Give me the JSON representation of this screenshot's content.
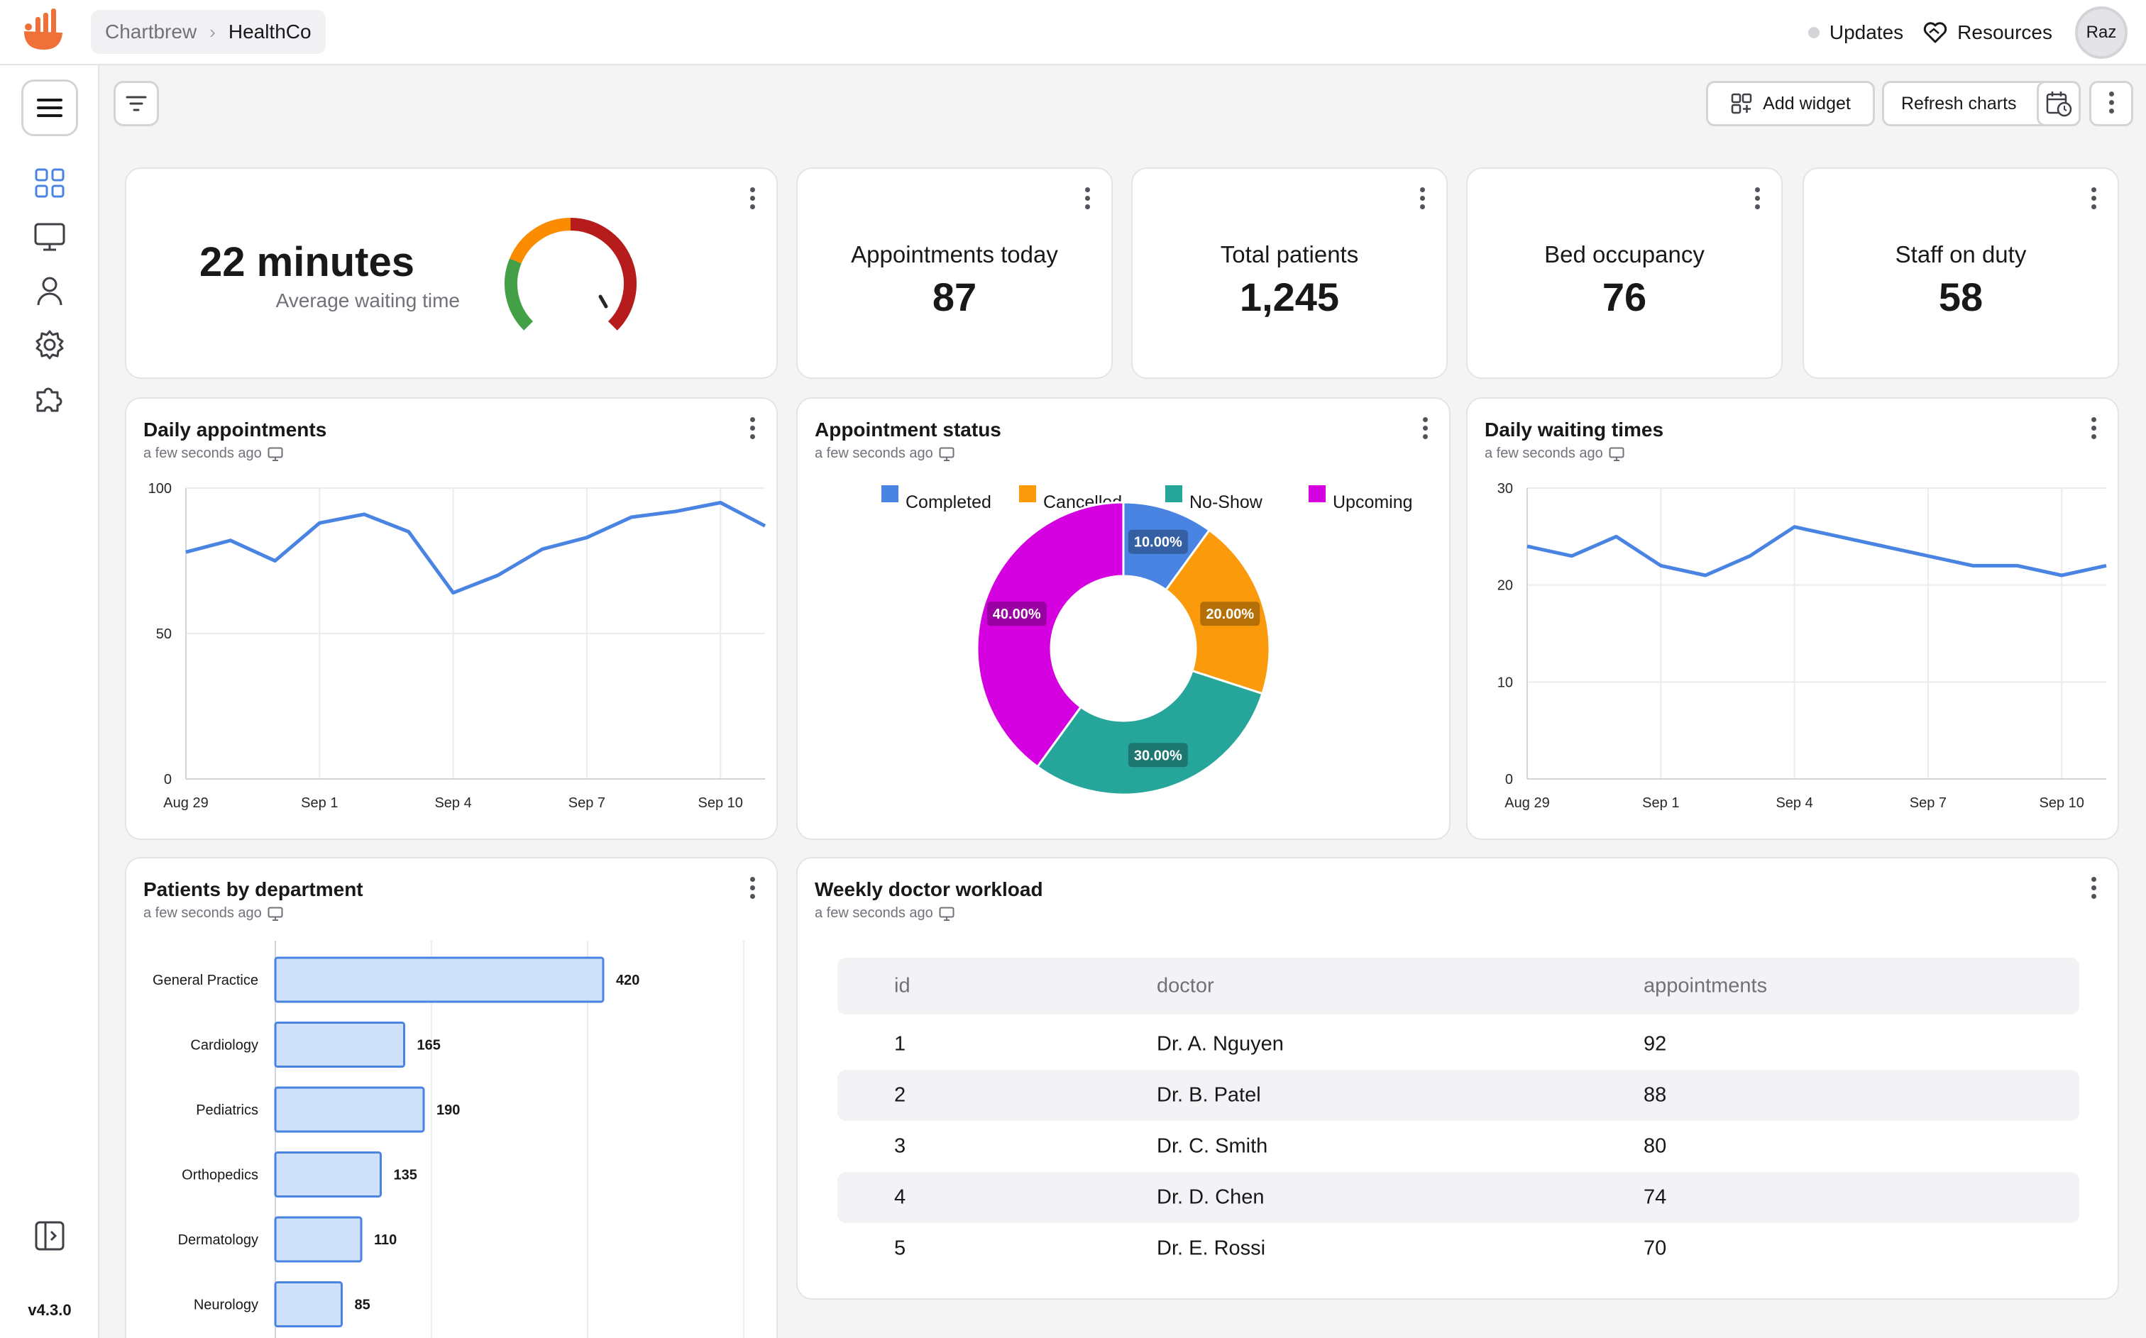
{
  "header": {
    "breadcrumb_parent": "Chartbrew",
    "breadcrumb_current": "HealthCo",
    "updates_label": "Updates",
    "resources_label": "Resources",
    "avatar_initials": "Raz"
  },
  "sidebar": {
    "version": "v4.3.0"
  },
  "toolbar": {
    "add_widget_label": "Add widget",
    "refresh_label": "Refresh charts"
  },
  "kpis": {
    "waiting": {
      "value": "22 minutes",
      "label": "Average waiting time",
      "gauge_colors": [
        "#43a047",
        "#fb8c00",
        "#b71c1c"
      ]
    },
    "appointments": {
      "label": "Appointments today",
      "value": "87"
    },
    "patients": {
      "label": "Total patients",
      "value": "1,245"
    },
    "beds": {
      "label": "Bed occupancy",
      "value": "76"
    },
    "staff": {
      "label": "Staff on duty",
      "value": "58"
    }
  },
  "widgets": {
    "daily_appointments": {
      "title": "Daily appointments",
      "subtitle": "a few seconds ago"
    },
    "appointment_status": {
      "title": "Appointment status",
      "subtitle": "a few seconds ago"
    },
    "daily_waiting": {
      "title": "Daily waiting times",
      "subtitle": "a few seconds ago"
    },
    "patients_by_dept": {
      "title": "Patients by department",
      "subtitle": "a few seconds ago"
    },
    "doctor_workload": {
      "title": "Weekly doctor workload",
      "subtitle": "a few seconds ago",
      "columns": [
        "id",
        "doctor",
        "appointments"
      ],
      "rows": [
        [
          "1",
          "Dr. A. Nguyen",
          "92"
        ],
        [
          "2",
          "Dr. B. Patel",
          "88"
        ],
        [
          "3",
          "Dr. C. Smith",
          "80"
        ],
        [
          "4",
          "Dr. D. Chen",
          "74"
        ],
        [
          "5",
          "Dr. E. Rossi",
          "70"
        ]
      ]
    }
  },
  "chart_data": [
    {
      "id": "daily_appointments",
      "type": "line",
      "color": "#4a84e2",
      "x": [
        "Aug 29",
        "Aug 30",
        "Aug 31",
        "Sep 1",
        "Sep 2",
        "Sep 3",
        "Sep 4",
        "Sep 5",
        "Sep 6",
        "Sep 7",
        "Sep 8",
        "Sep 9",
        "Sep 10",
        "Sep 11"
      ],
      "values": [
        78,
        82,
        75,
        88,
        91,
        85,
        64,
        70,
        79,
        83,
        90,
        92,
        95,
        87
      ],
      "xticks": [
        "Aug 29",
        "Sep 1",
        "Sep 4",
        "Sep 7",
        "Sep 10"
      ],
      "yticks": [
        0,
        50,
        100
      ],
      "ylim": [
        0,
        100
      ]
    },
    {
      "id": "appointment_status",
      "type": "pie",
      "labels": [
        "Completed",
        "Cancelled",
        "No-Show",
        "Upcoming"
      ],
      "values": [
        10,
        20,
        30,
        40
      ],
      "value_labels": [
        "10.00%",
        "20.00%",
        "30.00%",
        "40.00%"
      ],
      "colors": [
        "#4a84e2",
        "#fb9a0a",
        "#26a69a",
        "#d500e0"
      ]
    },
    {
      "id": "daily_waiting",
      "type": "line",
      "color": "#4a84e2",
      "x": [
        "Aug 29",
        "Aug 30",
        "Aug 31",
        "Sep 1",
        "Sep 2",
        "Sep 3",
        "Sep 4",
        "Sep 5",
        "Sep 6",
        "Sep 7",
        "Sep 8",
        "Sep 9",
        "Sep 10",
        "Sep 11"
      ],
      "values": [
        24,
        23,
        25,
        22,
        21,
        23,
        26,
        25,
        24,
        23,
        22,
        22,
        21,
        22
      ],
      "xticks": [
        "Aug 29",
        "Sep 1",
        "Sep 4",
        "Sep 7",
        "Sep 10"
      ],
      "yticks": [
        0,
        10,
        20,
        30
      ],
      "ylim": [
        0,
        30
      ]
    },
    {
      "id": "patients_by_dept",
      "type": "bar",
      "orientation": "horizontal",
      "categories": [
        "General Practice",
        "Cardiology",
        "Pediatrics",
        "Orthopedics",
        "Dermatology",
        "Neurology"
      ],
      "values": [
        420,
        165,
        190,
        135,
        110,
        85
      ],
      "xlim": [
        0,
        600
      ]
    }
  ]
}
